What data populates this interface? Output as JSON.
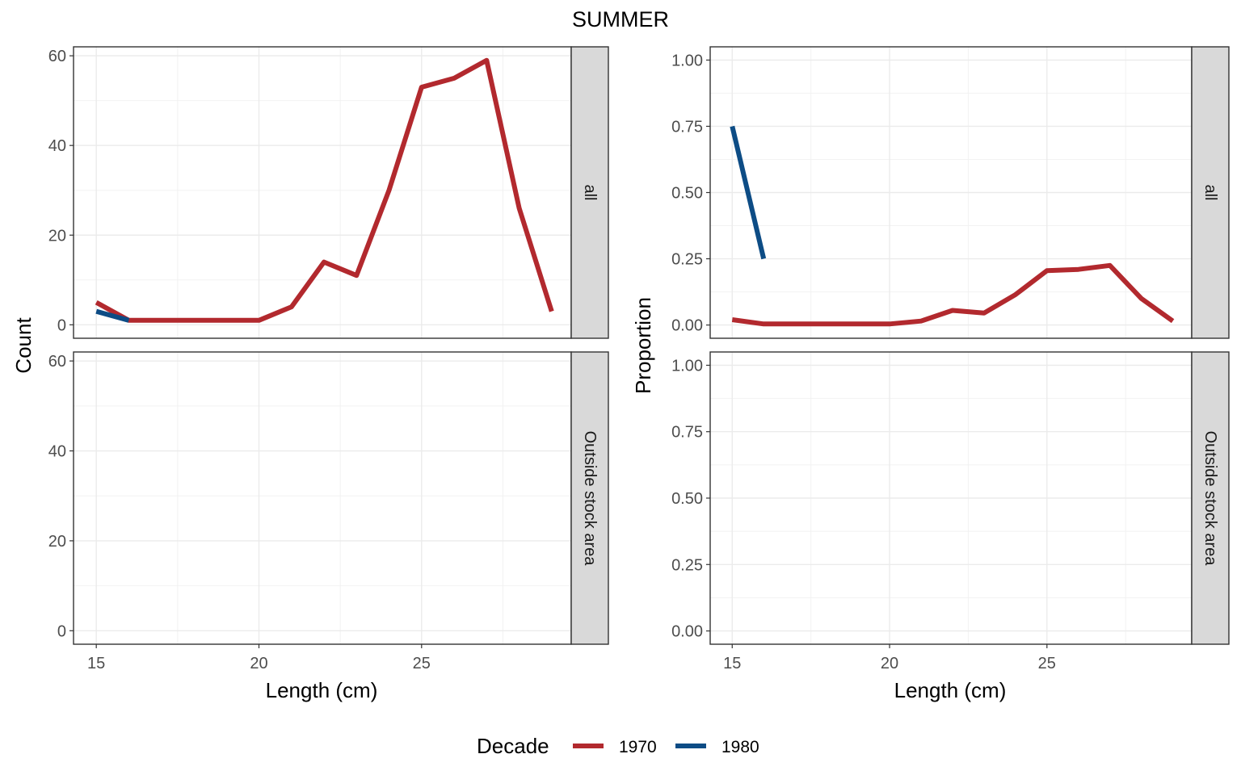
{
  "title": "SUMMER",
  "legend": {
    "title": "Decade",
    "position": "bottom",
    "items": [
      {
        "label": "1970",
        "color": "#B2292E"
      },
      {
        "label": "1980",
        "color": "#0D4C85"
      }
    ]
  },
  "chart_data": [
    {
      "type": "line",
      "ylabel": "Count",
      "xlabel": "Length (cm)",
      "xlim": [
        14.3,
        29.6
      ],
      "xticks": [
        15,
        20,
        25
      ],
      "ylim": [
        -3,
        62
      ],
      "yticks": [
        0,
        20,
        40,
        60
      ],
      "yticklabels": [
        "0",
        "20",
        "40",
        "60"
      ],
      "grid": true,
      "panels": [
        {
          "strip": "all",
          "series": [
            {
              "name": "1970",
              "color": "#B2292E",
              "x": [
                15,
                16,
                17,
                18,
                19,
                20,
                21,
                22,
                23,
                24,
                25,
                26,
                27,
                28,
                29
              ],
              "y": [
                5,
                1,
                1,
                1,
                1,
                1,
                4,
                14,
                11,
                30,
                53,
                55,
                59,
                26,
                3
              ]
            },
            {
              "name": "1980",
              "color": "#0D4C85",
              "x": [
                15,
                16
              ],
              "y": [
                3,
                1
              ]
            }
          ]
        },
        {
          "strip": "Outside stock area",
          "series": []
        }
      ]
    },
    {
      "type": "line",
      "ylabel": "Proportion",
      "xlabel": "Length (cm)",
      "xlim": [
        14.3,
        29.6
      ],
      "xticks": [
        15,
        20,
        25
      ],
      "ylim": [
        -0.05,
        1.05
      ],
      "yticks": [
        0,
        0.25,
        0.5,
        0.75,
        1
      ],
      "yticklabels": [
        "0.00",
        "0.25",
        "0.50",
        "0.75",
        "1.00"
      ],
      "grid": true,
      "panels": [
        {
          "strip": "all",
          "series": [
            {
              "name": "1970",
              "color": "#B2292E",
              "x": [
                15,
                16,
                17,
                18,
                19,
                20,
                21,
                22,
                23,
                24,
                25,
                26,
                27,
                28,
                29
              ],
              "y": [
                0.02,
                0.004,
                0.004,
                0.004,
                0.004,
                0.004,
                0.015,
                0.055,
                0.045,
                0.115,
                0.205,
                0.21,
                0.225,
                0.1,
                0.015
              ]
            },
            {
              "name": "1980",
              "color": "#0D4C85",
              "x": [
                15,
                16
              ],
              "y": [
                0.75,
                0.25
              ]
            }
          ]
        },
        {
          "strip": "Outside stock area",
          "series": []
        }
      ]
    }
  ]
}
